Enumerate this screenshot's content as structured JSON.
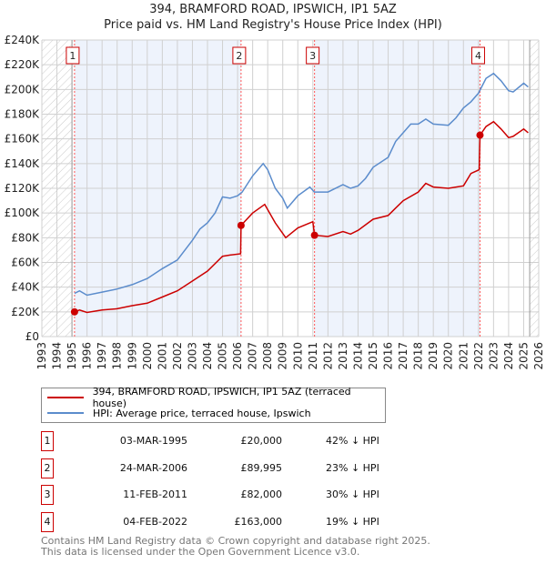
{
  "chart_data": {
    "type": "line",
    "title": "394, BRAMFORD ROAD, IPSWICH, IP1 5AZ",
    "subtitle": "Price paid vs. HM Land Registry's House Price Index (HPI)",
    "xlim": [
      1993,
      2026
    ],
    "ylim": [
      0,
      240000
    ],
    "x_ticks": [
      "1993",
      "1994",
      "1995",
      "1996",
      "1997",
      "1998",
      "1999",
      "2000",
      "2001",
      "2002",
      "2003",
      "2004",
      "2005",
      "2006",
      "2007",
      "2008",
      "2009",
      "2010",
      "2011",
      "2012",
      "2013",
      "2014",
      "2015",
      "2016",
      "2017",
      "2018",
      "2019",
      "2020",
      "2021",
      "2022",
      "2023",
      "2024",
      "2025",
      "2026"
    ],
    "y_ticks": [
      {
        "v": 0,
        "label": "£0"
      },
      {
        "v": 20000,
        "label": "£20K"
      },
      {
        "v": 40000,
        "label": "£40K"
      },
      {
        "v": 60000,
        "label": "£60K"
      },
      {
        "v": 80000,
        "label": "£80K"
      },
      {
        "v": 100000,
        "label": "£100K"
      },
      {
        "v": 120000,
        "label": "£120K"
      },
      {
        "v": 140000,
        "label": "£140K"
      },
      {
        "v": 160000,
        "label": "£160K"
      },
      {
        "v": 180000,
        "label": "£180K"
      },
      {
        "v": 200000,
        "label": "£200K"
      },
      {
        "v": 220000,
        "label": "£220K"
      },
      {
        "v": 240000,
        "label": "£240K"
      }
    ],
    "grid": true,
    "series": [
      {
        "name": "394, BRAMFORD ROAD, IPSWICH, IP1 5AZ (terraced house)",
        "color": "#cc0000",
        "x": [
          1995.17,
          1995.5,
          1996,
          1997,
          1998,
          1999,
          2000,
          2001,
          2002,
          2003,
          2004,
          2005,
          2005.5,
          2006.2,
          2006.23,
          2007,
          2007.8,
          2008.5,
          2009.2,
          2010,
          2011,
          2011.11,
          2012,
          2013,
          2013.5,
          2014,
          2015,
          2016,
          2016.5,
          2017,
          2018,
          2018.5,
          2019,
          2020,
          2021,
          2021.5,
          2022.05,
          2022.1,
          2022.5,
          2023,
          2023.5,
          2024,
          2024.3,
          2025,
          2025.3
        ],
        "y": [
          20000,
          21500,
          19500,
          21500,
          22500,
          25000,
          27000,
          32000,
          37000,
          45000,
          53000,
          65000,
          66000,
          67000,
          89995,
          100000,
          107000,
          92000,
          80000,
          88000,
          93000,
          82000,
          81000,
          85000,
          83000,
          86000,
          95000,
          98000,
          104000,
          110000,
          117000,
          124000,
          121000,
          120000,
          122000,
          132000,
          135000,
          163000,
          170000,
          174000,
          168000,
          161000,
          162000,
          168000,
          165000
        ]
      },
      {
        "name": "HPI: Average price, terraced house, Ipswich",
        "color": "#5b8ccc",
        "x": [
          1995.17,
          1995.5,
          1996,
          1997,
          1998,
          1999,
          2000,
          2001,
          2002,
          2003,
          2003.5,
          2004,
          2004.5,
          2005,
          2005.5,
          2006,
          2006.3,
          2007,
          2007.7,
          2008,
          2008.5,
          2009,
          2009.3,
          2010,
          2010.8,
          2011.1,
          2012,
          2013,
          2013.5,
          2014,
          2014.5,
          2015,
          2016,
          2016.5,
          2017,
          2017.5,
          2018,
          2018.5,
          2019,
          2020,
          2020.5,
          2021,
          2021.5,
          2022,
          2022.5,
          2023,
          2023.5,
          2024,
          2024.3,
          2025,
          2025.3
        ],
        "y": [
          35000,
          37000,
          33500,
          36000,
          38500,
          42000,
          47000,
          55000,
          62000,
          78000,
          87000,
          92000,
          100000,
          113000,
          112000,
          114000,
          117000,
          130000,
          140000,
          135000,
          120000,
          112000,
          104000,
          114000,
          121000,
          117000,
          117000,
          123000,
          120000,
          122000,
          128000,
          137000,
          145000,
          158000,
          165000,
          172000,
          172000,
          176000,
          172000,
          171000,
          177000,
          185000,
          190000,
          197000,
          209000,
          213000,
          207000,
          199000,
          198000,
          205000,
          202000
        ]
      }
    ],
    "sales": [
      {
        "label": "1",
        "x": 1995.17,
        "y": 20000
      },
      {
        "label": "2",
        "x": 2006.23,
        "y": 89995
      },
      {
        "label": "3",
        "x": 2011.11,
        "y": 82000
      },
      {
        "label": "4",
        "x": 2022.1,
        "y": 163000
      }
    ],
    "shaded_periods": [
      [
        1995.17,
        2006.23
      ],
      [
        2011.11,
        2022.1
      ]
    ],
    "hatched_periods": [
      [
        1993,
        1995.0
      ],
      [
        2025.4,
        2026
      ]
    ],
    "legend_position": "below"
  },
  "legend": {
    "items": [
      {
        "label": "394, BRAMFORD ROAD, IPSWICH, IP1 5AZ (terraced house)",
        "color": "#cc0000"
      },
      {
        "label": "HPI: Average price, terraced house, Ipswich",
        "color": "#5b8ccc"
      }
    ]
  },
  "table": [
    {
      "num": "1",
      "date": "03-MAR-1995",
      "price": "£20,000",
      "hpi": "42% ↓ HPI"
    },
    {
      "num": "2",
      "date": "24-MAR-2006",
      "price": "£89,995",
      "hpi": "23% ↓ HPI"
    },
    {
      "num": "3",
      "date": "11-FEB-2011",
      "price": "£82,000",
      "hpi": "30% ↓ HPI"
    },
    {
      "num": "4",
      "date": "04-FEB-2022",
      "price": "£163,000",
      "hpi": "19% ↓ HPI"
    }
  ],
  "footer": {
    "line1": "Contains HM Land Registry data © Crown copyright and database right 2025.",
    "line2": "This data is licensed under the Open Government Licence v3.0."
  }
}
